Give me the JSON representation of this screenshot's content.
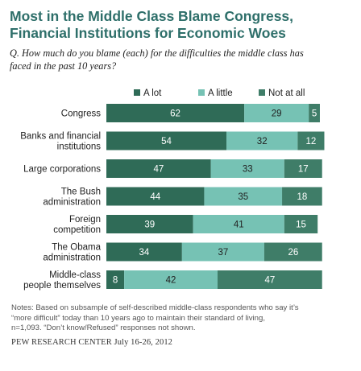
{
  "title": "Most in the Middle Class Blame Congress,\nFinancial Institutions for Economic Woes",
  "question": "Q. How much do you blame (each) for the difficulties the middle class has\nfaced in the past 10 years?",
  "notes": "Notes: Based on subsample of self-described middle-class respondents who say it’s\n“more difficult” today than 10 years ago to maintain their standard of living,\nn=1,093. “Don’t know/Refused” responses not shown.",
  "source": {
    "org": "PEW RESEARCH CENTER",
    "date": "July 16-26, 2012"
  },
  "chart_data": {
    "type": "bar",
    "orientation": "horizontal",
    "stacked": true,
    "categories": [
      "Congress",
      "Banks and financial institutions",
      "Large corporations",
      "The Bush administration",
      "Foreign competition",
      "The Obama administration",
      "Middle-class people themselves"
    ],
    "category_lines": [
      [
        "Congress"
      ],
      [
        "Banks and financial",
        "institutions"
      ],
      [
        "Large corporations"
      ],
      [
        "The Bush",
        "administration"
      ],
      [
        "Foreign",
        "competition"
      ],
      [
        "The Obama",
        "administration"
      ],
      [
        "Middle-class",
        "people themselves"
      ]
    ],
    "series": [
      {
        "name": "A lot",
        "color": "#2f6b57",
        "values": [
          62,
          54,
          47,
          44,
          39,
          34,
          8
        ]
      },
      {
        "name": "A little",
        "color": "#76c2b4",
        "values": [
          29,
          32,
          33,
          35,
          41,
          37,
          42
        ]
      },
      {
        "name": "Not at all",
        "color": "#3f7d68",
        "values": [
          5,
          12,
          17,
          18,
          15,
          26,
          47
        ]
      }
    ],
    "xlim": [
      0,
      100
    ],
    "legend": "top",
    "grid": false,
    "data_labels": true
  }
}
